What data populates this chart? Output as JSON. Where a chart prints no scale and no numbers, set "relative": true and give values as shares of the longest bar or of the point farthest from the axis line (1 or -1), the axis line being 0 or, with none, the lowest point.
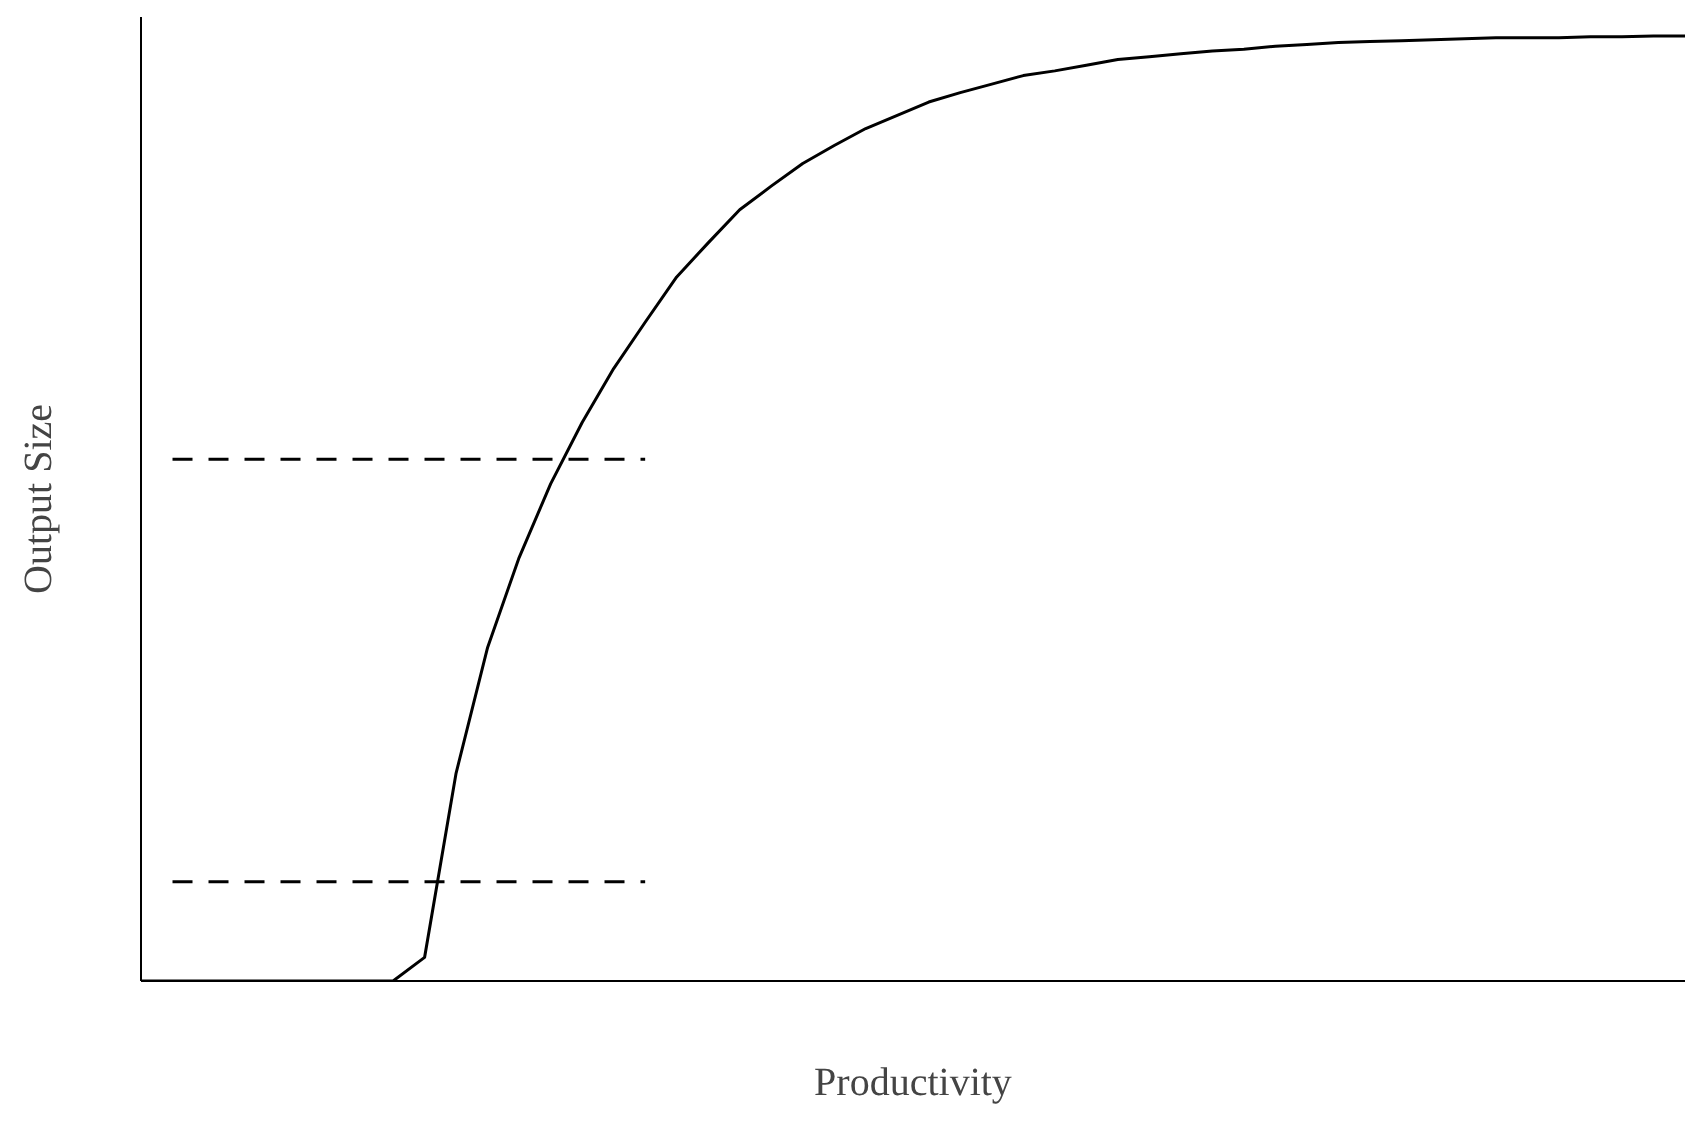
{
  "chart_data": {
    "type": "line",
    "xlabel": "Productivity",
    "ylabel": "Output Size",
    "relative": true,
    "categories": [
      null,
      null,
      null,
      null,
      null,
      null,
      null,
      null,
      null,
      null,
      null,
      null,
      null,
      null,
      null,
      null,
      null,
      null,
      null,
      null,
      null,
      null,
      null,
      null,
      null,
      null,
      null,
      null,
      null,
      null,
      null,
      null,
      null,
      null,
      null,
      null,
      null,
      null,
      null,
      null,
      null,
      null,
      null,
      null,
      null,
      null,
      null,
      null,
      null,
      null
    ],
    "series": [
      {
        "color": "#000000",
        "line_style": "solid",
        "values": [
          0,
          0,
          0,
          0,
          0,
          0,
          0,
          0,
          0,
          0.025,
          0.22,
          0.353,
          0.448,
          0.526,
          0.591,
          0.648,
          0.697,
          0.745,
          0.781,
          0.816,
          0.841,
          0.865,
          0.884,
          0.902,
          0.916,
          0.93,
          0.94,
          0.949,
          0.958,
          0.963,
          0.969,
          0.975,
          0.978,
          0.981,
          0.984,
          0.986,
          0.989,
          0.991,
          0.993,
          0.994,
          0.995,
          0.996,
          0.997,
          0.998,
          0.998,
          0.998,
          0.999,
          0.999,
          1,
          1
        ]
      },
      {
        "color": "#000000",
        "line_style": "dashed",
        "values": [
          null,
          0.552,
          0.552,
          0.552,
          0.552,
          0.552,
          0.552,
          0.552,
          0.552,
          0.552,
          0.552,
          0.552,
          0.552,
          0.552,
          0.552,
          0.552,
          0.552,
          null,
          null,
          null,
          null,
          null,
          null,
          null,
          null,
          null,
          null,
          null,
          null,
          null,
          null,
          null,
          null,
          null,
          null,
          null,
          null,
          null,
          null,
          null,
          null,
          null,
          null,
          null,
          null,
          null,
          null,
          null,
          null,
          null
        ]
      },
      {
        "color": "#000000",
        "line_style": "dashed",
        "values": [
          null,
          0.105,
          0.105,
          0.105,
          0.105,
          0.105,
          0.105,
          0.105,
          0.105,
          0.105,
          0.105,
          0.105,
          0.105,
          0.105,
          0.105,
          0.105,
          0.105,
          null,
          null,
          null,
          null,
          null,
          null,
          null,
          null,
          null,
          null,
          null,
          null,
          null,
          null,
          null,
          null,
          null,
          null,
          null,
          null,
          null,
          null,
          null,
          null,
          null,
          null,
          null,
          null,
          null,
          null,
          null,
          null,
          null
        ]
      }
    ]
  }
}
